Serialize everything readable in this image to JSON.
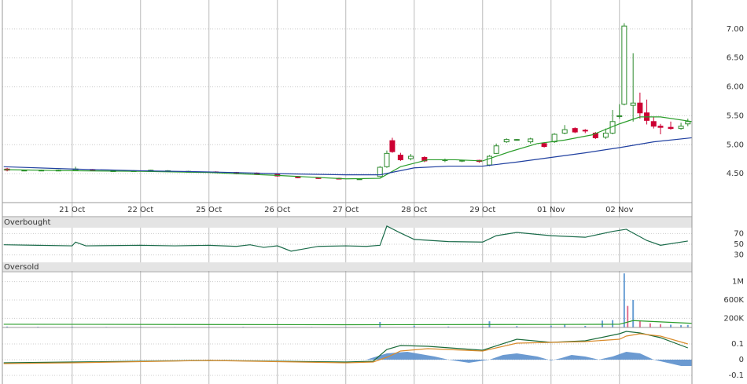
{
  "chart_data": [
    {
      "type": "candlestick",
      "xlim": [
        -1.02,
        9.06
      ],
      "xticks": [
        {
          "value": 0,
          "label": "21 Oct"
        },
        {
          "value": 1,
          "label": "22 Oct"
        },
        {
          "value": 2,
          "label": "25 Oct"
        },
        {
          "value": 3,
          "label": "26 Oct"
        },
        {
          "value": 4,
          "label": "27 Oct"
        },
        {
          "value": 5,
          "label": "28 Oct"
        },
        {
          "value": 6,
          "label": "29 Oct"
        },
        {
          "value": 7,
          "label": "01 Nov"
        },
        {
          "value": 8,
          "label": "02 Nov"
        }
      ],
      "ylim": [
        4.0,
        7.5
      ],
      "yticks": [
        {
          "value": 4.5,
          "label": "4.50"
        },
        {
          "value": 5,
          "label": "5.00"
        },
        {
          "value": 5.5,
          "label": "5.50"
        },
        {
          "value": 6,
          "label": "6.00"
        },
        {
          "value": 6.5,
          "label": "6.50"
        },
        {
          "value": 7,
          "label": "7.00"
        }
      ],
      "up_color": "#2e8b2e",
      "down_color": "#cc0033",
      "x": [
        -0.95,
        -0.7,
        -0.45,
        -0.2,
        0.05,
        0.3,
        0.6,
        0.9,
        1.15,
        1.4,
        1.7,
        2.1,
        2.4,
        2.7,
        3.0,
        3.3,
        3.6,
        3.9,
        4.2,
        4.5,
        4.6,
        4.68,
        4.8,
        4.95,
        5.15,
        5.45,
        5.7,
        5.95,
        6.1,
        6.2,
        6.35,
        6.5,
        6.7,
        6.9,
        7.05,
        7.2,
        7.35,
        7.5,
        7.65,
        7.8,
        7.9,
        8.0,
        8.07,
        8.2,
        8.3,
        8.4,
        8.5,
        8.6,
        8.75,
        8.9,
        9.0
      ],
      "open": [
        4.58,
        4.56,
        4.55,
        4.56,
        4.56,
        4.57,
        4.55,
        4.55,
        4.54,
        4.55,
        4.54,
        4.53,
        4.52,
        4.51,
        4.49,
        4.45,
        4.43,
        4.42,
        4.41,
        4.45,
        4.62,
        5.07,
        4.82,
        4.76,
        4.78,
        4.73,
        4.72,
        4.73,
        4.65,
        4.85,
        5.05,
        5.08,
        5.05,
        5.02,
        5.05,
        5.2,
        5.28,
        5.25,
        5.2,
        5.13,
        5.2,
        5.5,
        5.7,
        5.68,
        5.72,
        5.55,
        5.4,
        5.32,
        5.3,
        5.28,
        5.36
      ],
      "high": [
        4.6,
        4.57,
        4.57,
        4.57,
        4.62,
        4.58,
        4.56,
        4.56,
        4.57,
        4.56,
        4.55,
        4.54,
        4.53,
        4.52,
        4.5,
        4.46,
        4.44,
        4.43,
        4.42,
        4.63,
        4.9,
        5.12,
        4.86,
        4.84,
        4.8,
        4.76,
        4.74,
        4.74,
        4.82,
        5.02,
        5.11,
        5.1,
        5.12,
        5.04,
        5.2,
        5.34,
        5.3,
        5.27,
        5.22,
        5.28,
        5.6,
        5.7,
        7.1,
        6.58,
        5.9,
        5.78,
        5.48,
        5.36,
        5.4,
        5.38,
        5.45
      ],
      "low": [
        4.54,
        4.55,
        4.55,
        4.55,
        4.55,
        4.55,
        4.54,
        4.54,
        4.53,
        4.54,
        4.53,
        4.51,
        4.49,
        4.48,
        4.45,
        4.42,
        4.41,
        4.4,
        4.4,
        4.44,
        4.6,
        4.86,
        4.72,
        4.73,
        4.7,
        4.7,
        4.7,
        4.69,
        4.63,
        4.84,
        5.03,
        5.07,
        5.02,
        4.95,
        5.03,
        5.18,
        5.2,
        5.2,
        5.1,
        5.1,
        5.18,
        5.45,
        5.68,
        5.4,
        5.45,
        5.35,
        5.28,
        5.18,
        5.26,
        5.26,
        5.32
      ],
      "close": [
        4.56,
        4.56,
        4.56,
        4.56,
        4.58,
        4.56,
        4.55,
        4.55,
        4.56,
        4.55,
        4.54,
        4.52,
        4.5,
        4.49,
        4.46,
        4.43,
        4.42,
        4.41,
        4.41,
        4.61,
        4.85,
        4.88,
        4.74,
        4.8,
        4.72,
        4.74,
        4.73,
        4.71,
        4.8,
        4.98,
        5.09,
        5.09,
        5.1,
        4.97,
        5.18,
        5.26,
        5.22,
        5.24,
        5.12,
        5.2,
        5.4,
        5.5,
        7.05,
        5.72,
        5.55,
        5.42,
        5.32,
        5.3,
        5.28,
        5.32,
        5.4
      ],
      "series": [
        {
          "color": "#2a9d2a",
          "x": [
            -1,
            0,
            1,
            2,
            3,
            4,
            4.5,
            4.8,
            5.2,
            5.6,
            6,
            6.4,
            6.8,
            7.2,
            7.6,
            8,
            8.3,
            8.6,
            9.06
          ],
          "values": [
            4.57,
            4.55,
            4.54,
            4.52,
            4.47,
            4.41,
            4.42,
            4.62,
            4.74,
            4.74,
            4.72,
            4.88,
            5.02,
            5.08,
            5.17,
            5.36,
            5.48,
            5.48,
            5.4
          ]
        },
        {
          "color": "#2040a0",
          "x": [
            -1,
            0,
            1,
            2,
            3,
            4,
            4.5,
            5,
            5.5,
            6,
            6.5,
            7,
            7.5,
            8,
            8.5,
            9.06
          ],
          "values": [
            4.62,
            4.58,
            4.55,
            4.53,
            4.5,
            4.48,
            4.48,
            4.6,
            4.63,
            4.63,
            4.7,
            4.78,
            4.86,
            4.95,
            5.05,
            5.12
          ]
        }
      ]
    },
    {
      "type": "line",
      "ylim": [
        0,
        100
      ],
      "yticks": [
        30,
        50,
        70
      ],
      "bands": [
        {
          "label": "Overbought",
          "from": 81,
          "to": 100
        },
        {
          "label": "Oversold",
          "from": 0,
          "to": 16
        }
      ],
      "series": [
        {
          "color": "#1a6b4a",
          "x": [
            -1,
            -0.5,
            0,
            0.05,
            0.2,
            1,
            1.5,
            2,
            2.4,
            2.6,
            2.8,
            3,
            3.2,
            3.6,
            4,
            4.3,
            4.5,
            4.6,
            4.8,
            5,
            5.5,
            6,
            6.2,
            6.5,
            7,
            7.5,
            7.9,
            8.1,
            8.4,
            8.6,
            9.0
          ],
          "values": [
            49,
            48,
            47,
            54,
            47,
            48,
            47,
            48,
            46,
            49,
            44,
            47,
            37,
            46,
            47,
            46,
            48,
            84,
            71,
            59,
            55,
            54,
            66,
            72,
            66,
            63,
            74,
            78,
            57,
            48,
            56
          ]
        }
      ]
    },
    {
      "type": "bar",
      "ylim": [
        0,
        1200000
      ],
      "yticks": [
        {
          "value": 200000,
          "label": "200K"
        },
        {
          "value": 600000,
          "label": "600K"
        },
        {
          "value": 1000000,
          "label": "1M"
        }
      ],
      "series": [
        {
          "style": "bar",
          "color": "#6a9fd4",
          "x": [
            -0.95,
            -0.5,
            0,
            0.5,
            1,
            1.5,
            2,
            2.5,
            3,
            3.5,
            4,
            4.5,
            5,
            5.5,
            6,
            6.1,
            6.5,
            7,
            7.2,
            7.5,
            7.75,
            7.9,
            8.07,
            8.2,
            8.75,
            8.9,
            9.0
          ],
          "values": [
            20000,
            15000,
            18000,
            12000,
            15000,
            10000,
            12000,
            14000,
            10000,
            12000,
            15000,
            120000,
            40000,
            20000,
            18000,
            135000,
            30000,
            40000,
            60000,
            35000,
            150000,
            160000,
            1180000,
            600000,
            60000,
            50000,
            55000
          ]
        },
        {
          "style": "bar",
          "color": "#e07090",
          "x": [
            8.12,
            8.3,
            8.45,
            8.6
          ],
          "values": [
            470000,
            150000,
            90000,
            70000
          ]
        },
        {
          "style": "line",
          "color": "#2a9d2a",
          "x": [
            -1,
            4,
            7,
            8,
            8.2,
            9.06
          ],
          "values": [
            70000,
            60000,
            65000,
            70000,
            150000,
            90000
          ]
        }
      ]
    },
    {
      "type": "line",
      "ylim": [
        -0.155,
        0.2
      ],
      "yticks": [
        -0.1,
        0,
        0.1
      ],
      "series": [
        {
          "style": "area",
          "color": "#5b8fcc",
          "x": [
            -1,
            4.3,
            4.6,
            4.9,
            5.3,
            5.5,
            5.8,
            6.1,
            6.3,
            6.5,
            6.8,
            7.0,
            7.15,
            7.3,
            7.5,
            7.7,
            7.9,
            8.1,
            8.3,
            8.5,
            8.7,
            8.9,
            9.06
          ],
          "values": [
            0,
            0,
            0.04,
            0.05,
            0.02,
            0,
            -0.02,
            0,
            0.03,
            0.04,
            0.02,
            -0.005,
            0.01,
            0.03,
            0.02,
            0,
            0.02,
            0.05,
            0.04,
            0,
            -0.02,
            -0.04,
            -0.04
          ]
        },
        {
          "style": "line",
          "color": "#1a6b3a",
          "x": [
            -1,
            0,
            2,
            4,
            4.4,
            4.6,
            4.8,
            5.2,
            6,
            6.5,
            7,
            7.5,
            8,
            8.1,
            8.3,
            8.6,
            9.0
          ],
          "values": [
            -0.02,
            -0.015,
            -0.005,
            -0.015,
            -0.01,
            0.065,
            0.09,
            0.085,
            0.06,
            0.13,
            0.11,
            0.12,
            0.165,
            0.18,
            0.17,
            0.14,
            0.075
          ]
        },
        {
          "style": "line",
          "color": "#d98b2b",
          "x": [
            -1,
            0,
            2,
            4,
            4.4,
            4.6,
            4.8,
            5.2,
            6,
            6.5,
            7,
            7.5,
            8,
            8.1,
            8.3,
            8.6,
            9.0
          ],
          "values": [
            -0.025,
            -0.02,
            -0.005,
            -0.02,
            -0.015,
            0.015,
            0.055,
            0.07,
            0.055,
            0.105,
            0.11,
            0.115,
            0.13,
            0.15,
            0.165,
            0.15,
            0.1
          ]
        }
      ]
    }
  ]
}
